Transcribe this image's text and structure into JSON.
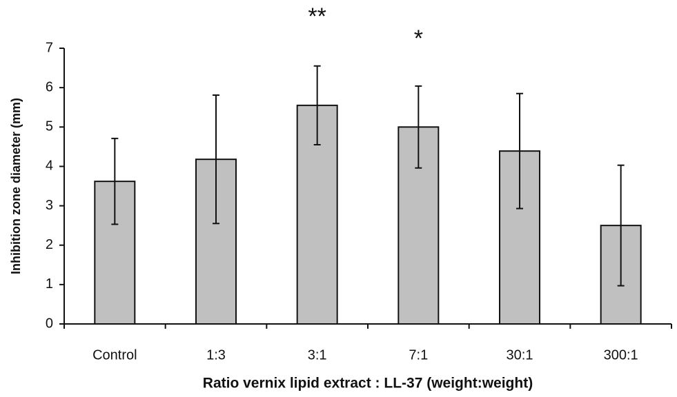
{
  "chart_data": {
    "type": "bar",
    "x_label": "Ratio vernix lipid extract : LL-37 (weight:weight)",
    "y_label": "Inhibition zone diameter (mm)",
    "categories": [
      "Control",
      "1:3",
      "3:1",
      "7:1",
      "30:1",
      "300:1"
    ],
    "values": [
      3.62,
      4.18,
      5.55,
      5.0,
      4.39,
      2.5
    ],
    "errors": [
      1.09,
      1.63,
      1.0,
      1.04,
      1.46,
      1.53
    ],
    "color": "#c0c0c0",
    "ylim": [
      0,
      7
    ],
    "yticks": [
      0,
      1,
      2,
      3,
      4,
      5,
      6,
      7
    ],
    "grid": false,
    "annotations": [
      {
        "text": "**",
        "category": "3:1"
      },
      {
        "text": "*",
        "category": "7:1"
      }
    ]
  }
}
